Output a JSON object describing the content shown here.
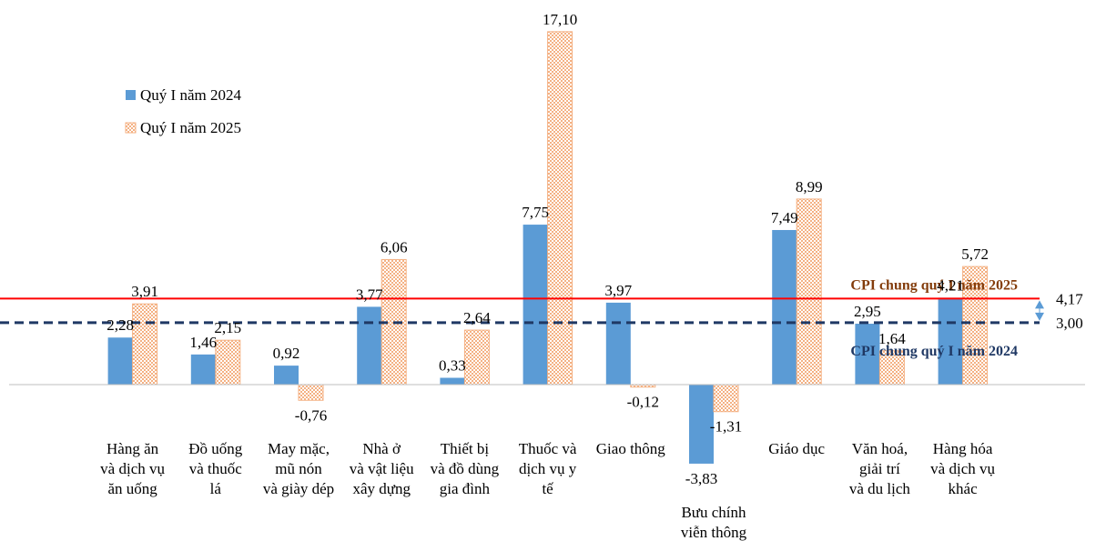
{
  "chart_data": {
    "type": "bar",
    "categories": [
      [
        "Hàng ăn",
        "và dịch vụ",
        "ăn uống"
      ],
      [
        "Đồ uống",
        "và thuốc",
        "lá"
      ],
      [
        "May mặc,",
        "mũ nón",
        "và giày dép"
      ],
      [
        "Nhà ở",
        "và vật liệu",
        "xây dựng"
      ],
      [
        "Thiết bị",
        "và đồ dùng",
        "gia đình"
      ],
      [
        "Thuốc và",
        "dịch vụ y",
        "tế"
      ],
      [
        "Giao thông"
      ],
      [
        "Bưu chính",
        "viễn thông"
      ],
      [
        "Giáo dục"
      ],
      [
        "Văn hoá,",
        "giải trí",
        "và du lịch"
      ],
      [
        "Hàng hóa",
        "và dịch vụ",
        "khác"
      ]
    ],
    "series": [
      {
        "name": "Quý I năm 2024",
        "values": [
          2.28,
          1.46,
          0.92,
          3.77,
          0.33,
          7.75,
          3.97,
          -3.83,
          7.49,
          2.95,
          4.21
        ],
        "labels": [
          "2,28",
          "1,46",
          "0,92",
          "3,77",
          "0,33",
          "7,75",
          "3,97",
          "-3,83",
          "7,49",
          "2,95",
          "4,21"
        ],
        "color": "#5B9BD5"
      },
      {
        "name": "Quý I năm 2025",
        "values": [
          3.91,
          2.15,
          -0.76,
          6.06,
          2.64,
          17.1,
          -0.12,
          -1.31,
          8.99,
          1.64,
          5.72
        ],
        "labels": [
          "3,91",
          "2,15",
          "-0,76",
          "6,06",
          "2,64",
          "17,10",
          "-0,12",
          "-1,31",
          "8,99",
          "1,64",
          "5,72"
        ],
        "color": "#F4B183"
      }
    ],
    "reference_lines": [
      {
        "name": "CPI chung quý I năm 2025",
        "value": 4.17,
        "label": "4,17",
        "color": "#FF0000",
        "style": "solid"
      },
      {
        "name": "CPI chung quý I năm 2024",
        "value": 3.0,
        "label": "3,00",
        "color": "#1F3864",
        "style": "dashed"
      }
    ],
    "legend_position": "top-left",
    "grid": false
  }
}
